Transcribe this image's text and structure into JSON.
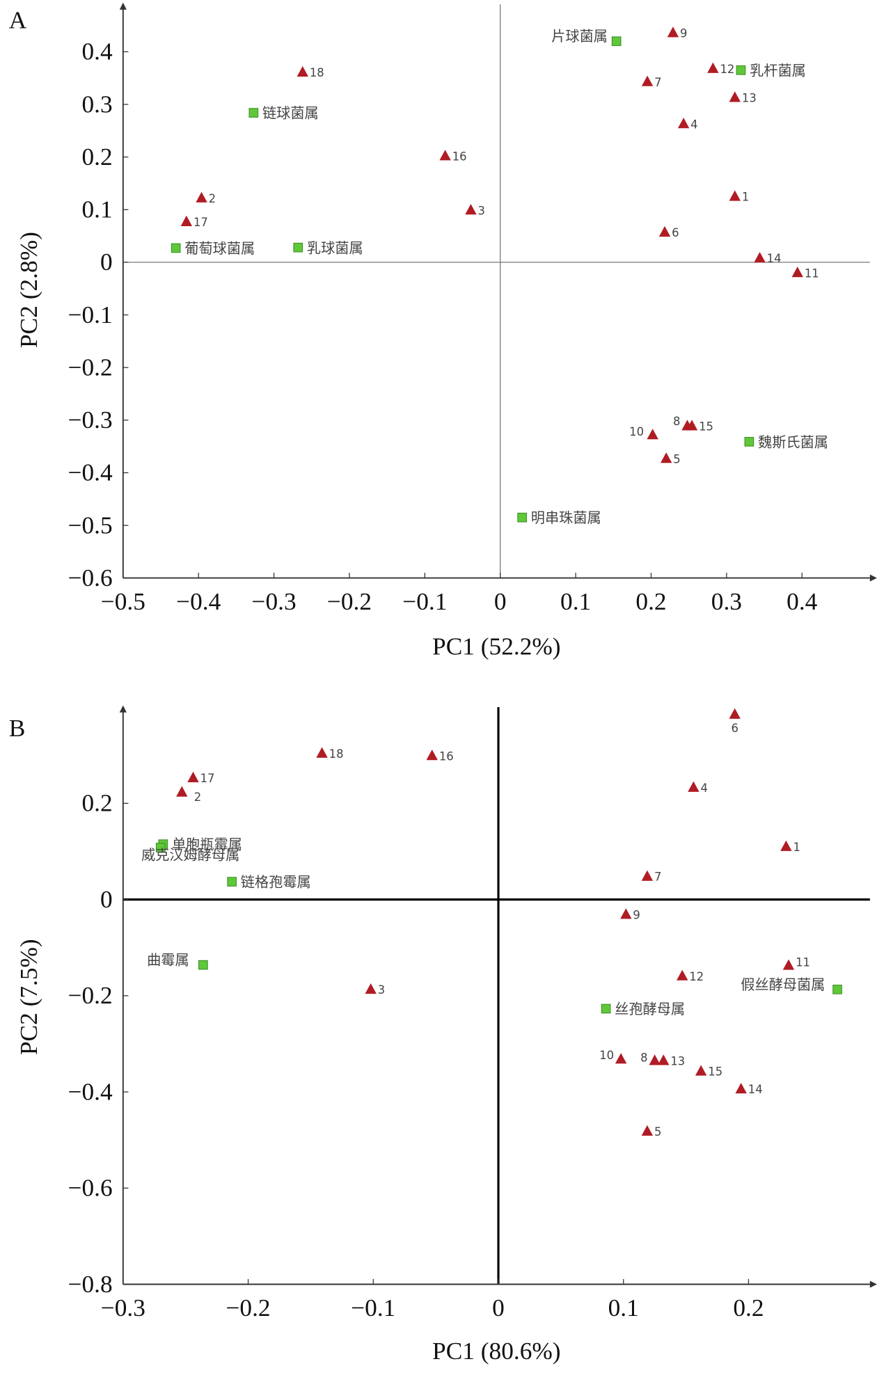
{
  "chart_data": [
    {
      "type": "scatter",
      "panel_label": "A",
      "x_label": "PC1 (52.2%)",
      "y_label": "PC2 (2.8%)",
      "xlim": [
        -0.5,
        0.49
      ],
      "ylim": [
        -0.6,
        0.49
      ],
      "xticks": [
        {
          "value": -0.5,
          "label": "−0.5"
        },
        {
          "value": -0.4,
          "label": "−0.4"
        },
        {
          "value": -0.3,
          "label": "−0.3"
        },
        {
          "value": -0.2,
          "label": "−0.2"
        },
        {
          "value": -0.1,
          "label": "−0.1"
        },
        0,
        0.1,
        0.2,
        0.3,
        0.4
      ],
      "yticks": [
        {
          "value": -0.6,
          "label": "−0.6"
        },
        {
          "value": -0.5,
          "label": "−0.5"
        },
        {
          "value": -0.4,
          "label": "−0.4"
        },
        {
          "value": -0.3,
          "label": "−0.3"
        },
        {
          "value": -0.2,
          "label": "−0.2"
        },
        {
          "value": -0.1,
          "label": "−0.1"
        },
        0,
        0.1,
        0.2,
        0.3,
        0.4
      ],
      "series": [
        {
          "marker": "triangle",
          "color": "#b01c24",
          "labels": [
            "18",
            "2",
            "17",
            "16",
            "3",
            "9",
            "7",
            "12",
            "13",
            "4",
            "1",
            "6",
            "14",
            "11",
            "8",
            "15",
            "10",
            "5"
          ],
          "x": [
            -0.262,
            -0.396,
            -0.416,
            -0.073,
            -0.039,
            0.229,
            0.195,
            0.282,
            0.311,
            0.243,
            0.311,
            0.218,
            0.344,
            0.394,
            0.248,
            0.254,
            0.202,
            0.22
          ],
          "values": [
            0.361,
            0.122,
            0.077,
            0.202,
            0.099,
            0.436,
            0.343,
            0.368,
            0.313,
            0.263,
            0.125,
            0.057,
            0.008,
            -0.02,
            -0.311,
            -0.311,
            -0.328,
            -0.373
          ]
        },
        {
          "marker": "square",
          "color": "#5ec83a",
          "labels": [
            "片球菌属",
            "乳杆菌属",
            "链球菌属",
            "葡萄球菌属",
            "乳球菌属",
            "魏斯氏菌属",
            "明串珠菌属"
          ],
          "x": [
            0.154,
            0.319,
            -0.327,
            -0.43,
            -0.268,
            0.33,
            0.029
          ],
          "values": [
            0.42,
            0.365,
            0.284,
            0.027,
            0.028,
            -0.341,
            -0.485
          ]
        }
      ]
    },
    {
      "type": "scatter",
      "panel_label": "B",
      "x_label": "PC1 (80.6%)",
      "y_label": "PC2 (7.5%)",
      "xlim": [
        -0.3,
        0.297
      ],
      "ylim": [
        -0.8,
        0.4
      ],
      "xticks": [
        {
          "value": -0.3,
          "label": "−0.3"
        },
        {
          "value": -0.2,
          "label": "−0.2"
        },
        {
          "value": -0.1,
          "label": "−0.1"
        },
        0,
        0.1,
        0.2
      ],
      "yticks": [
        {
          "value": -0.8,
          "label": "−0.8"
        },
        {
          "value": -0.6,
          "label": "−0.6"
        },
        {
          "value": -0.4,
          "label": "−0.4"
        },
        {
          "value": -0.2,
          "label": "−0.2"
        },
        0,
        0.2
      ],
      "series": [
        {
          "marker": "triangle",
          "color": "#b01c24",
          "labels": [
            "18",
            "16",
            "17",
            "2",
            "3",
            "6",
            "4",
            "1",
            "7",
            "9",
            "12",
            "11",
            "10",
            "8",
            "13",
            "15",
            "14",
            "5"
          ],
          "x": [
            -0.141,
            -0.053,
            -0.244,
            -0.253,
            -0.102,
            0.189,
            0.156,
            0.23,
            0.119,
            0.102,
            0.147,
            0.232,
            0.098,
            0.125,
            0.132,
            0.162,
            0.194,
            0.119
          ],
          "values": [
            0.304,
            0.299,
            0.253,
            0.223,
            -0.187,
            0.385,
            0.233,
            0.11,
            0.048,
            -0.031,
            -0.159,
            -0.137,
            -0.332,
            -0.335,
            -0.335,
            -0.357,
            -0.394,
            -0.482
          ]
        },
        {
          "marker": "square",
          "color": "#5ec83a",
          "labels": [
            "单胞瓶霉属",
            "威克汉姆酵母属",
            "链格孢霉属",
            "曲霉属",
            "丝孢酵母属",
            "假丝酵母菌属"
          ],
          "x": [
            -0.268,
            -0.27,
            -0.213,
            -0.236,
            0.086,
            0.271
          ],
          "values": [
            0.115,
            0.108,
            0.037,
            -0.136,
            -0.227,
            -0.187
          ]
        }
      ]
    }
  ]
}
